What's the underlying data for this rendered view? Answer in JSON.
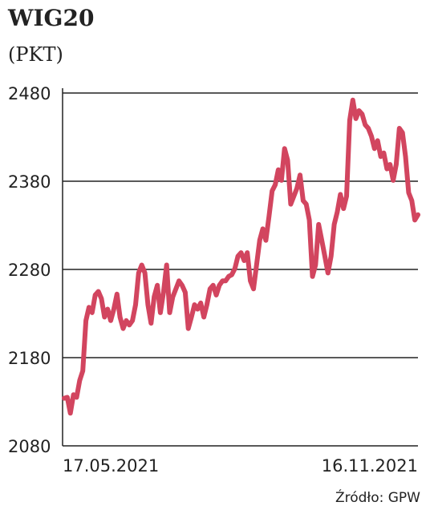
{
  "chart_data": {
    "type": "line",
    "title": "WIG20",
    "subtitle": "(PKT)",
    "source": "Źródło: GPW",
    "color": "#d2455f",
    "grid": true,
    "ylim": [
      2080,
      2480
    ],
    "yticks": [
      2080,
      2180,
      2280,
      2380,
      2480
    ],
    "categories": [
      "17.05.2021",
      null,
      null,
      null,
      null,
      null,
      null,
      null,
      null,
      null,
      null,
      null,
      null,
      null,
      null,
      null,
      null,
      null,
      null,
      null,
      null,
      null,
      null,
      null,
      null,
      null,
      null,
      null,
      null,
      null,
      null,
      null,
      null,
      null,
      null,
      null,
      null,
      null,
      null,
      null,
      null,
      null,
      null,
      null,
      null,
      null,
      null,
      null,
      null,
      null,
      null,
      null,
      null,
      null,
      null,
      null,
      null,
      null,
      null,
      null,
      null,
      null,
      null,
      null,
      null,
      null,
      null,
      null,
      null,
      null,
      null,
      null,
      null,
      null,
      null,
      null,
      null,
      null,
      null,
      null,
      null,
      null,
      null,
      null,
      null,
      null,
      null,
      null,
      null,
      null,
      null,
      null,
      null,
      null,
      null,
      null,
      null,
      null,
      null,
      null,
      null,
      null,
      null,
      null,
      null,
      null,
      null,
      null,
      null,
      null,
      null,
      null,
      null,
      null,
      "16.11.2021"
    ],
    "values": [
      2134,
      2135,
      2117,
      2138,
      2135,
      2154,
      2165,
      2222,
      2237,
      2231,
      2251,
      2255,
      2247,
      2226,
      2235,
      2222,
      2235,
      2252,
      2226,
      2213,
      2222,
      2217,
      2222,
      2240,
      2276,
      2285,
      2276,
      2240,
      2219,
      2249,
      2262,
      2231,
      2254,
      2285,
      2231,
      2249,
      2258,
      2267,
      2262,
      2254,
      2213,
      2226,
      2240,
      2235,
      2242,
      2226,
      2240,
      2258,
      2262,
      2251,
      2262,
      2267,
      2267,
      2272,
      2274,
      2281,
      2295,
      2299,
      2290,
      2299,
      2267,
      2258,
      2285,
      2313,
      2326,
      2313,
      2340,
      2369,
      2376,
      2393,
      2381,
      2417,
      2404,
      2354,
      2363,
      2372,
      2387,
      2358,
      2354,
      2336,
      2272,
      2285,
      2331,
      2313,
      2295,
      2276,
      2295,
      2331,
      2345,
      2365,
      2349,
      2363,
      2449,
      2472,
      2451,
      2460,
      2456,
      2444,
      2440,
      2431,
      2417,
      2426,
      2408,
      2412,
      2394,
      2399,
      2381,
      2399,
      2440,
      2435,
      2408,
      2367,
      2358,
      2336,
      2342
    ]
  }
}
